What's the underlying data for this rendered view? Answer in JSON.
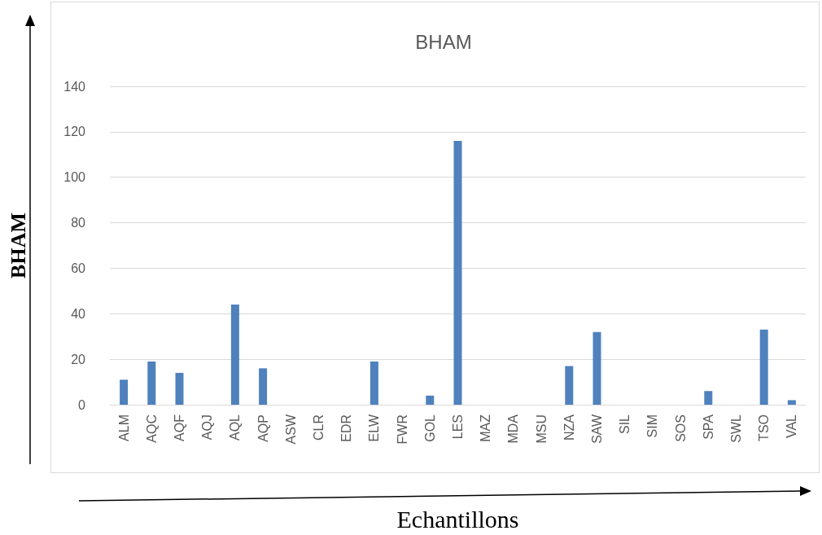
{
  "chart_data": {
    "type": "bar",
    "title": "BHAM",
    "xlabel": "Echantillons",
    "ylabel": "BHAM",
    "categories": [
      "ALM",
      "AQC",
      "AQF",
      "AQJ",
      "AQL",
      "AQP",
      "ASW",
      "CLR",
      "EDR",
      "ELW",
      "FWR",
      "GOL",
      "LES",
      "MAZ",
      "MDA",
      "MSU",
      "NZA",
      "SAW",
      "SIL",
      "SIM",
      "SOS",
      "SPA",
      "SWL",
      "TSO",
      "VAL"
    ],
    "values": [
      11,
      19,
      14,
      0,
      44,
      16,
      0,
      0,
      0,
      19,
      0,
      4,
      116,
      0,
      0,
      0,
      17,
      32,
      0,
      0,
      0,
      6,
      0,
      33,
      2
    ],
    "color": "#4f81bd",
    "ylim": [
      0,
      140
    ],
    "yticks": [
      0,
      20,
      40,
      60,
      80,
      100,
      120,
      140
    ],
    "grid": "y"
  }
}
